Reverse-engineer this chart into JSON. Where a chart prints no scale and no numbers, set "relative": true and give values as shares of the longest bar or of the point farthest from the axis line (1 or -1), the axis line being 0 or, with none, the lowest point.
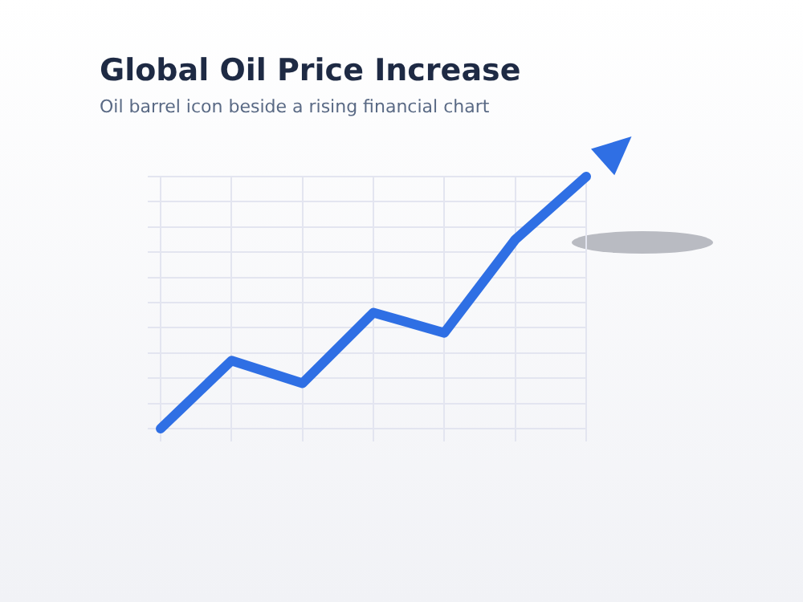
{
  "chart_data": {
    "type": "line",
    "title": "Global Oil Price Increase",
    "subtitle": "Oil barrel icon beside a rising financial chart",
    "relative": true,
    "categories": [
      null,
      null,
      null,
      null,
      null,
      null,
      null
    ],
    "series": [
      {
        "color": "#2f6fe4",
        "values": [
          0,
          0.27,
          0.18,
          0.46,
          0.38,
          0.75,
          1
        ]
      }
    ],
    "grid": true,
    "legend": false,
    "marker": "none",
    "line_style": "solid"
  }
}
